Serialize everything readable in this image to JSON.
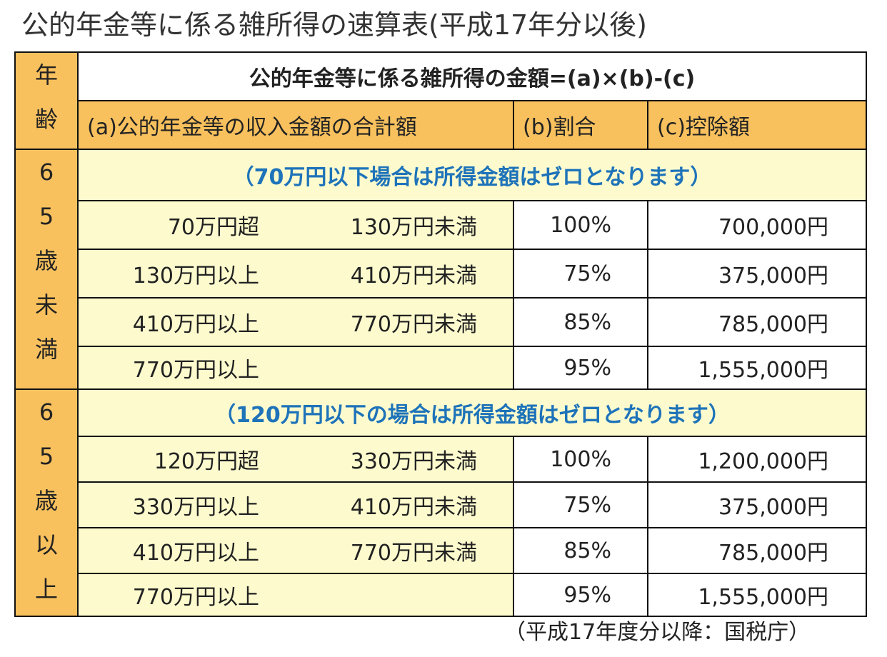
{
  "title": "公的年金等に係る雑所得の速算表(平成17年分以後)",
  "table": {
    "age_header": [
      "年",
      "齢"
    ],
    "formula": "公的年金等に係る雑所得の金額=(a)×(b)-(c)",
    "col_a": "(a)公的年金等の収入金額の合計額",
    "col_b": "(b)割合",
    "col_c": "(c)控除額",
    "sections": [
      {
        "age_label": [
          "6",
          "5",
          "歳",
          "未",
          "満"
        ],
        "note": "（70万円以下場合は所得金額はゼロとなります）",
        "rows": [
          {
            "from": "70万円超",
            "to": "130万円未満",
            "rate": "100%",
            "deduction": "700,000円"
          },
          {
            "from": "130万円以上",
            "to": "410万円未満",
            "rate": "75%",
            "deduction": "375,000円"
          },
          {
            "from": "410万円以上",
            "to": "770万円未満",
            "rate": "85%",
            "deduction": "785,000円"
          },
          {
            "from": "770万円以上",
            "to": "",
            "rate": "95%",
            "deduction": "1,555,000円"
          }
        ]
      },
      {
        "age_label": [
          "6",
          "5",
          "歳",
          "以",
          "上"
        ],
        "note": "（120万円以下の場合は所得金額はゼロとなります）",
        "rows": [
          {
            "from": "120万円超",
            "to": "330万円未満",
            "rate": "100%",
            "deduction": "1,200,000円"
          },
          {
            "from": "330万円以上",
            "to": "410万円未満",
            "rate": "75%",
            "deduction": "375,000円"
          },
          {
            "from": "410万円以上",
            "to": "770万円未満",
            "rate": "85%",
            "deduction": "785,000円"
          },
          {
            "from": "770万円以上",
            "to": "",
            "rate": "95%",
            "deduction": "1,555,000円"
          }
        ]
      }
    ]
  },
  "source": "（平成17年度分以降：国税庁）",
  "colors": {
    "header_orange": "#f8c15e",
    "note_yellow": "#fdfbce",
    "note_text": "#1e73b9"
  }
}
